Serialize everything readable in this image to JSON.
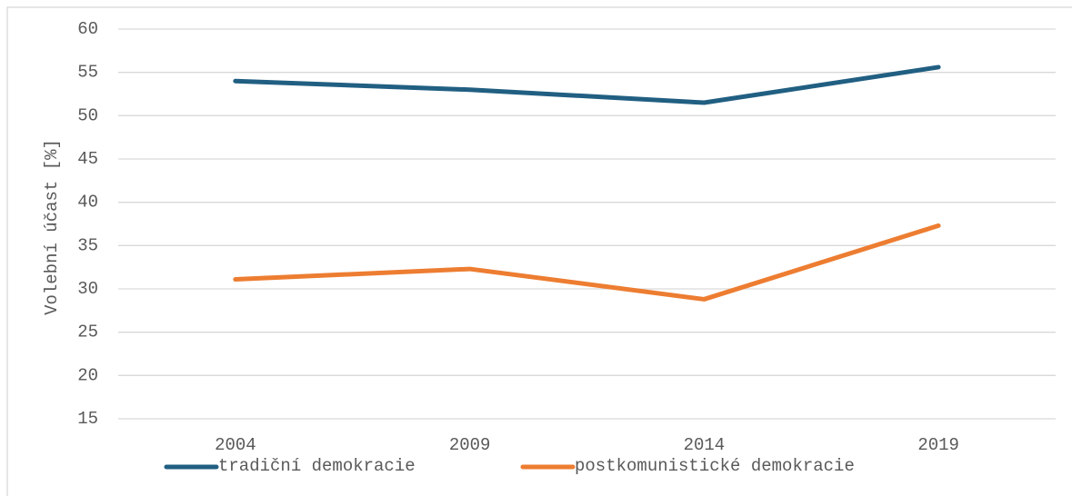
{
  "chart_data": {
    "type": "line",
    "y_label": "Volební účast [%]",
    "categories": [
      "2004",
      "2009",
      "2014",
      "2019"
    ],
    "series": [
      {
        "name": "tradiční demokracie",
        "color": "#215f82",
        "values": [
          54.0,
          53.0,
          51.5,
          55.6
        ]
      },
      {
        "name": "postkomunistické demokracie",
        "color": "#ed7d31",
        "values": [
          31.1,
          32.3,
          28.8,
          37.3
        ]
      }
    ],
    "ylim": [
      15,
      60
    ],
    "yticks": [
      15,
      20,
      25,
      30,
      35,
      40,
      45,
      50,
      55,
      60
    ],
    "grid": true,
    "legend": "bottom"
  }
}
